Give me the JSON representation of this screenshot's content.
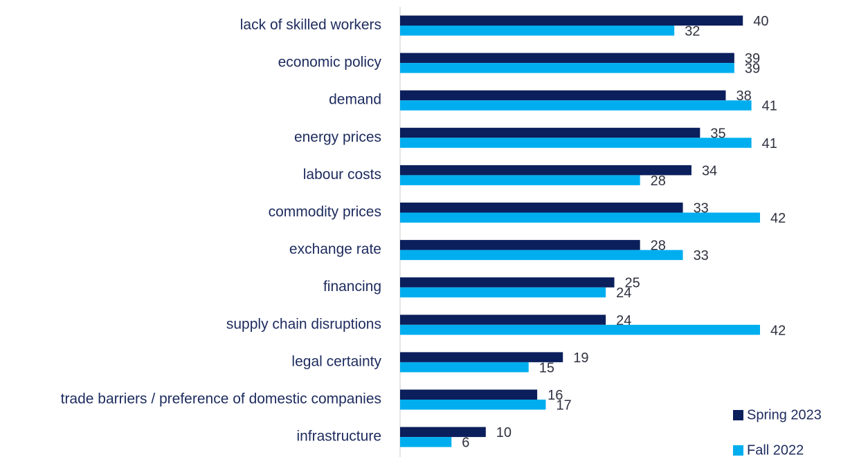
{
  "chart_data": {
    "type": "bar",
    "orientation": "horizontal",
    "categories": [
      "lack of skilled workers",
      "economic policy",
      "demand",
      "energy prices",
      "labour costs",
      "commodity prices",
      "exchange rate",
      "financing",
      "supply chain disruptions",
      "legal certainty",
      "trade barriers / preference of domestic companies",
      "infrastructure"
    ],
    "series": [
      {
        "name": "Spring 2023",
        "color": "#0b1f5c",
        "values": [
          40,
          39,
          38,
          35,
          34,
          33,
          28,
          25,
          24,
          19,
          16,
          10
        ]
      },
      {
        "name": "Fall 2022",
        "color": "#00aeef",
        "values": [
          32,
          39,
          41,
          41,
          28,
          42,
          33,
          24,
          42,
          15,
          17,
          6
        ]
      }
    ],
    "legend": "lower right"
  }
}
